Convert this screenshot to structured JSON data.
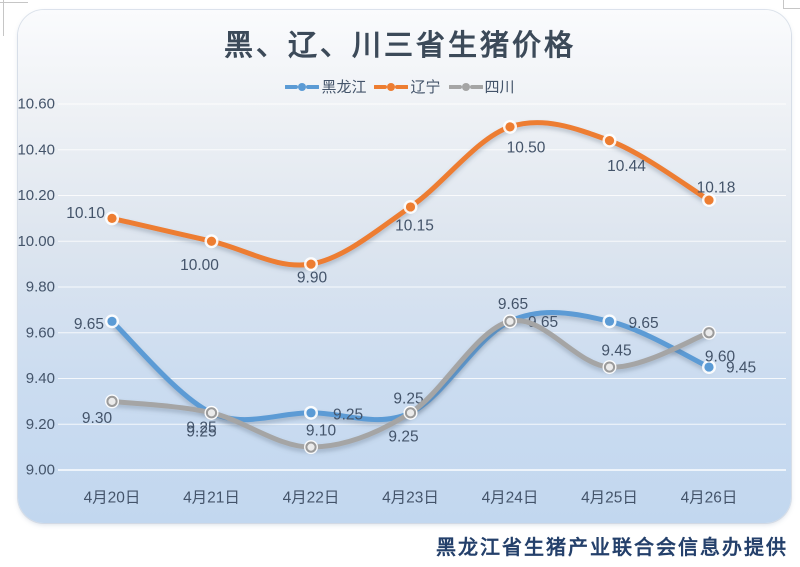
{
  "page": {
    "caption": "黑龙江省生猪产业联合会信息办提供"
  },
  "colors": {
    "title_text": "#3c4a59",
    "axis_text": "#44546a",
    "label_text": "#44546a",
    "gridline": "#ffffff",
    "panel_top": "#fafbfd",
    "panel_bottom": "#c2d7ef",
    "caption_text": "#24406b"
  },
  "chart_data": {
    "type": "line",
    "title": "黑、辽、川三省生猪价格",
    "xlabel": "",
    "ylabel": "",
    "categories": [
      "4月20日",
      "4月21日",
      "4月22日",
      "4月23日",
      "4月24日",
      "4月25日",
      "4月26日"
    ],
    "series": [
      {
        "name": "黑龙江",
        "color": "#5B9BD5",
        "marker_fill": "#5B9BD5",
        "marker_stroke": "#ffffff",
        "values": [
          9.65,
          9.25,
          9.25,
          9.25,
          9.65,
          9.65,
          9.45
        ],
        "labels": [
          "9.65",
          "9.25",
          "9.25",
          "9.25",
          "9.65",
          "9.65",
          "9.45"
        ],
        "label_pos": [
          [
            -8,
            3,
            "end"
          ],
          [
            -10,
            15,
            "middle"
          ],
          [
            22,
            2,
            "start"
          ],
          [
            -2,
            -14,
            "middle"
          ],
          [
            18,
            1,
            "start"
          ],
          [
            19,
            2,
            "start"
          ],
          [
            17,
            1,
            "start"
          ]
        ]
      },
      {
        "name": "辽宁",
        "color": "#ED7D31",
        "marker_fill": "#ED7D31",
        "marker_stroke": "#ffffff",
        "values": [
          10.1,
          10.0,
          9.9,
          10.15,
          10.5,
          10.44,
          10.18
        ],
        "labels": [
          "10.10",
          "10.00",
          "9.90",
          "10.15",
          "10.50",
          "10.44",
          "10.18"
        ],
        "label_pos": [
          [
            -7,
            -5,
            "end"
          ],
          [
            -12,
            24,
            "middle"
          ],
          [
            1,
            14,
            "middle"
          ],
          [
            4,
            19,
            "middle"
          ],
          [
            16,
            21,
            "middle"
          ],
          [
            17,
            26,
            "middle"
          ],
          [
            7,
            -12,
            "middle"
          ]
        ]
      },
      {
        "name": "四川",
        "color": "#A5A5A5",
        "marker_fill": "#ebebeb",
        "marker_stroke": "#9b9b9b",
        "values": [
          9.3,
          9.25,
          9.1,
          9.25,
          9.65,
          9.45,
          9.6
        ],
        "labels": [
          "9.30",
          "9.25",
          "9.10",
          "9.25",
          "9.65",
          "9.45",
          "9.60"
        ],
        "label_pos": [
          [
            -15,
            17,
            "middle"
          ],
          [
            -10,
            19,
            "middle"
          ],
          [
            10,
            -16,
            "middle"
          ],
          [
            -7,
            24,
            "middle"
          ],
          [
            3,
            -17,
            "middle"
          ],
          [
            7,
            -16,
            "middle"
          ],
          [
            11,
            24,
            "middle"
          ]
        ]
      }
    ],
    "ylim": [
      9.0,
      10.6
    ],
    "ytick_step": 0.2,
    "yticks": [
      "10.60",
      "10.40",
      "10.20",
      "10.00",
      "9.80",
      "9.60",
      "9.40",
      "9.20",
      "9.00"
    ],
    "grid": true,
    "legend_position": "top",
    "smoothed_lines": true
  }
}
